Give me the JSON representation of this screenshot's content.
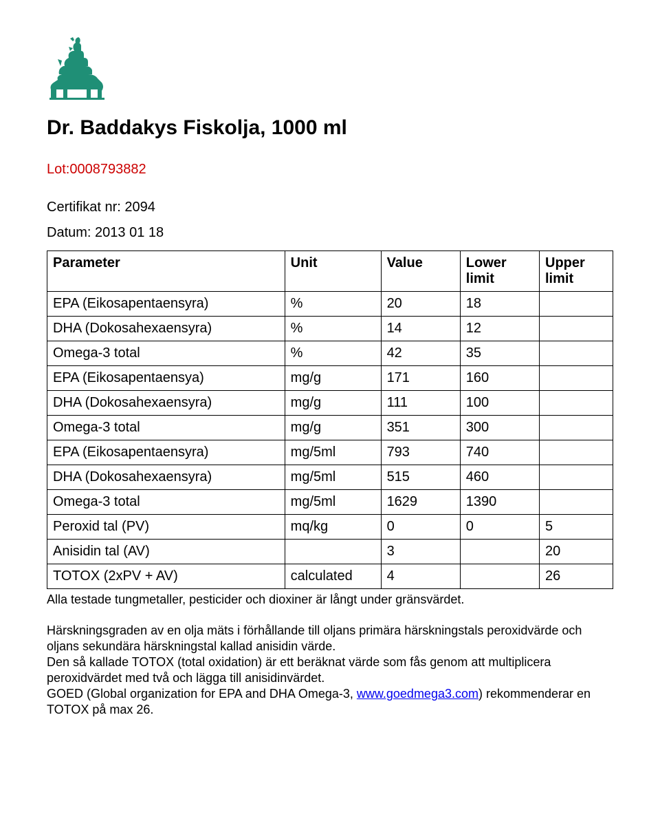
{
  "logo": {
    "color": "#1f8f76",
    "width": 90,
    "height": 116
  },
  "title": "Dr. Baddakys Fiskolja, 1000 ml",
  "lot": "Lot:0008793882",
  "certificate_line": "Certifikat nr: 2094",
  "date_line": "Datum: 2013 01 18",
  "table": {
    "columns": [
      "Parameter",
      "Unit",
      "Value",
      "Lower limit",
      "Upper limit"
    ],
    "rows": [
      [
        "EPA (Eikosapentaensyra)",
        "%",
        "20",
        "18",
        ""
      ],
      [
        "DHA (Dokosahexaensyra)",
        "%",
        "14",
        "12",
        ""
      ],
      [
        "Omega-3 total",
        "%",
        "42",
        "35",
        ""
      ],
      [
        "EPA (Eikosapentaensya)",
        "mg/g",
        "171",
        "160",
        ""
      ],
      [
        "DHA (Dokosahexaensyra)",
        "mg/g",
        "111",
        "100",
        ""
      ],
      [
        "Omega-3 total",
        "mg/g",
        "351",
        "300",
        ""
      ],
      [
        "EPA (Eikosapentaensyra)",
        "mg/5ml",
        "793",
        "740",
        ""
      ],
      [
        "DHA (Dokosahexaensyra)",
        "mg/5ml",
        "515",
        "460",
        ""
      ],
      [
        "Omega-3 total",
        "mg/5ml",
        "1629",
        "1390",
        ""
      ],
      [
        "Peroxid tal (PV)",
        "mq/kg",
        "0",
        "0",
        "5"
      ],
      [
        "Anisidin tal (AV)",
        "",
        "3",
        "",
        "20"
      ],
      [
        "TOTOX (2xPV + AV)",
        "calculated",
        "4",
        "",
        "26"
      ]
    ],
    "border_color": "#000000",
    "font_size": 20
  },
  "caption": "Alla testade tungmetaller, pesticider och dioxiner är långt under gränsvärdet.",
  "paragraph2_a": "Härskningsgraden av en olja mäts i förhållande till oljans primära härskningstals peroxidvärde och oljans sekundära härskningstal kallad anisidin värde.",
  "paragraph2_b": "Den så kallade TOTOX (total oxidation) är ett beräknat värde som fås genom att multiplicera peroxidvärdet med två och lägga till anisidinvärdet.",
  "paragraph2_c_pre": "GOED (Global organization for EPA and DHA Omega-3, ",
  "paragraph2_c_link": "www.goedmega3.com",
  "paragraph2_c_post": ") rekommenderar en TOTOX på max 26.",
  "colors": {
    "text": "#000000",
    "lot": "#cc0000",
    "link": "#0000ee",
    "background": "#ffffff"
  },
  "typography": {
    "title_fontsize": 30,
    "body_fontsize": 20,
    "caption_fontsize": 18
  }
}
